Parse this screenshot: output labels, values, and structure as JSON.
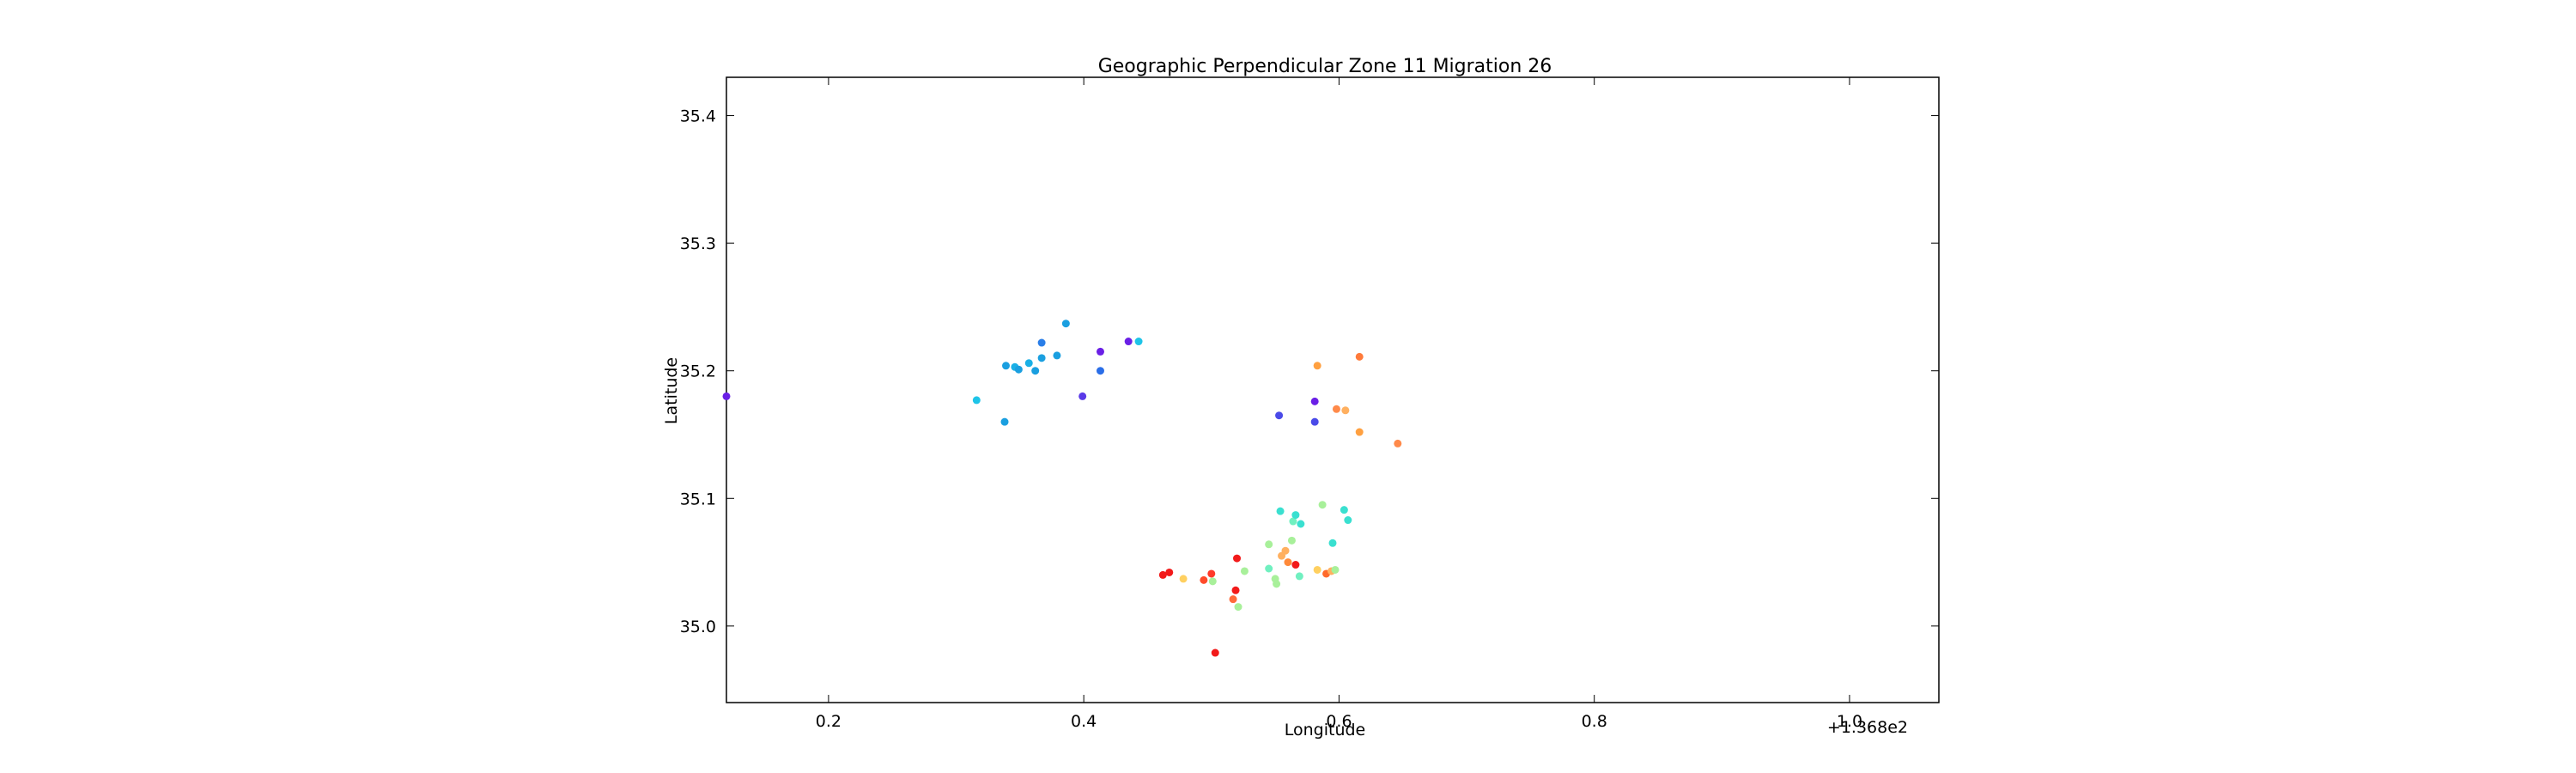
{
  "chart_data": {
    "type": "scatter",
    "title": "Geographic Perpendicular Zone 11 Migration 26",
    "xlabel": "Longitude",
    "ylabel": "Latitude",
    "x_offset_label": "+1.368e2",
    "xlim": [
      0.12,
      1.07
    ],
    "ylim": [
      34.94,
      35.43
    ],
    "xticks": [
      0.2,
      0.4,
      0.6,
      0.8,
      1.0
    ],
    "xtick_labels": [
      "0.2",
      "0.4",
      "0.6",
      "0.8",
      "1.0"
    ],
    "yticks": [
      35.0,
      35.1,
      35.2,
      35.3,
      35.4
    ],
    "ytick_labels": [
      "35.0",
      "35.1",
      "35.2",
      "35.3",
      "35.4"
    ],
    "grid": false,
    "points": [
      {
        "x": 0.12,
        "y": 35.18,
        "color": "#6a1fe6"
      },
      {
        "x": 0.316,
        "y": 35.177,
        "color": "#1ec4e8"
      },
      {
        "x": 0.338,
        "y": 35.16,
        "color": "#1a9fe0"
      },
      {
        "x": 0.339,
        "y": 35.204,
        "color": "#1a9fe0"
      },
      {
        "x": 0.346,
        "y": 35.203,
        "color": "#1ab0e6"
      },
      {
        "x": 0.349,
        "y": 35.201,
        "color": "#1a9fe0"
      },
      {
        "x": 0.357,
        "y": 35.206,
        "color": "#1ab0e6"
      },
      {
        "x": 0.362,
        "y": 35.2,
        "color": "#1a9fe0"
      },
      {
        "x": 0.367,
        "y": 35.21,
        "color": "#1a9fe0"
      },
      {
        "x": 0.367,
        "y": 35.222,
        "color": "#2a7ee8"
      },
      {
        "x": 0.379,
        "y": 35.212,
        "color": "#1a9fe0"
      },
      {
        "x": 0.386,
        "y": 35.237,
        "color": "#1a9fe0"
      },
      {
        "x": 0.399,
        "y": 35.18,
        "color": "#5a3ae8"
      },
      {
        "x": 0.413,
        "y": 35.215,
        "color": "#6a1fe6"
      },
      {
        "x": 0.413,
        "y": 35.2,
        "color": "#2a6ee8"
      },
      {
        "x": 0.435,
        "y": 35.223,
        "color": "#6a1fe6"
      },
      {
        "x": 0.443,
        "y": 35.223,
        "color": "#1ec4e8"
      },
      {
        "x": 0.462,
        "y": 35.04,
        "color": "#f21a1a"
      },
      {
        "x": 0.467,
        "y": 35.042,
        "color": "#f21a1a"
      },
      {
        "x": 0.478,
        "y": 35.037,
        "color": "#ffd060"
      },
      {
        "x": 0.494,
        "y": 35.036,
        "color": "#ff4a2a"
      },
      {
        "x": 0.5,
        "y": 35.041,
        "color": "#ff3a2a"
      },
      {
        "x": 0.501,
        "y": 35.035,
        "color": "#a8f09a"
      },
      {
        "x": 0.503,
        "y": 34.979,
        "color": "#f21a1a"
      },
      {
        "x": 0.517,
        "y": 35.021,
        "color": "#ff6a3a"
      },
      {
        "x": 0.519,
        "y": 35.028,
        "color": "#f21a1a"
      },
      {
        "x": 0.52,
        "y": 35.053,
        "color": "#f21a1a"
      },
      {
        "x": 0.521,
        "y": 35.015,
        "color": "#a8f09a"
      },
      {
        "x": 0.526,
        "y": 35.043,
        "color": "#a8f09a"
      },
      {
        "x": 0.545,
        "y": 35.064,
        "color": "#a8f09a"
      },
      {
        "x": 0.545,
        "y": 35.045,
        "color": "#70f0c0"
      },
      {
        "x": 0.55,
        "y": 35.037,
        "color": "#a8f09a"
      },
      {
        "x": 0.551,
        "y": 35.033,
        "color": "#a8f09a"
      },
      {
        "x": 0.554,
        "y": 35.09,
        "color": "#3ae0d0"
      },
      {
        "x": 0.555,
        "y": 35.055,
        "color": "#ffb060"
      },
      {
        "x": 0.558,
        "y": 35.059,
        "color": "#ffb060"
      },
      {
        "x": 0.56,
        "y": 35.05,
        "color": "#ff8a3a"
      },
      {
        "x": 0.563,
        "y": 35.067,
        "color": "#a8f09a"
      },
      {
        "x": 0.564,
        "y": 35.082,
        "color": "#70f0c0"
      },
      {
        "x": 0.566,
        "y": 35.087,
        "color": "#3ae0d0"
      },
      {
        "x": 0.566,
        "y": 35.048,
        "color": "#f21a1a"
      },
      {
        "x": 0.569,
        "y": 35.039,
        "color": "#70f0c0"
      },
      {
        "x": 0.57,
        "y": 35.08,
        "color": "#3ae0d0"
      },
      {
        "x": 0.553,
        "y": 35.165,
        "color": "#4a4ae8"
      },
      {
        "x": 0.581,
        "y": 35.176,
        "color": "#6a1fe6"
      },
      {
        "x": 0.581,
        "y": 35.16,
        "color": "#4a4ae8"
      },
      {
        "x": 0.583,
        "y": 35.204,
        "color": "#ffa040"
      },
      {
        "x": 0.583,
        "y": 35.044,
        "color": "#ffd060"
      },
      {
        "x": 0.587,
        "y": 35.095,
        "color": "#a8f09a"
      },
      {
        "x": 0.59,
        "y": 35.041,
        "color": "#ff6a2a"
      },
      {
        "x": 0.594,
        "y": 35.043,
        "color": "#ffb060"
      },
      {
        "x": 0.595,
        "y": 35.065,
        "color": "#3ae0d0"
      },
      {
        "x": 0.597,
        "y": 35.044,
        "color": "#a8f09a"
      },
      {
        "x": 0.598,
        "y": 35.17,
        "color": "#ff8a4a"
      },
      {
        "x": 0.604,
        "y": 35.091,
        "color": "#3ae0d0"
      },
      {
        "x": 0.605,
        "y": 35.169,
        "color": "#ffb060"
      },
      {
        "x": 0.607,
        "y": 35.083,
        "color": "#3ae0d0"
      },
      {
        "x": 0.616,
        "y": 35.152,
        "color": "#ffa040"
      },
      {
        "x": 0.616,
        "y": 35.211,
        "color": "#ff7a3a"
      },
      {
        "x": 0.646,
        "y": 35.143,
        "color": "#ff8a4a"
      }
    ]
  }
}
